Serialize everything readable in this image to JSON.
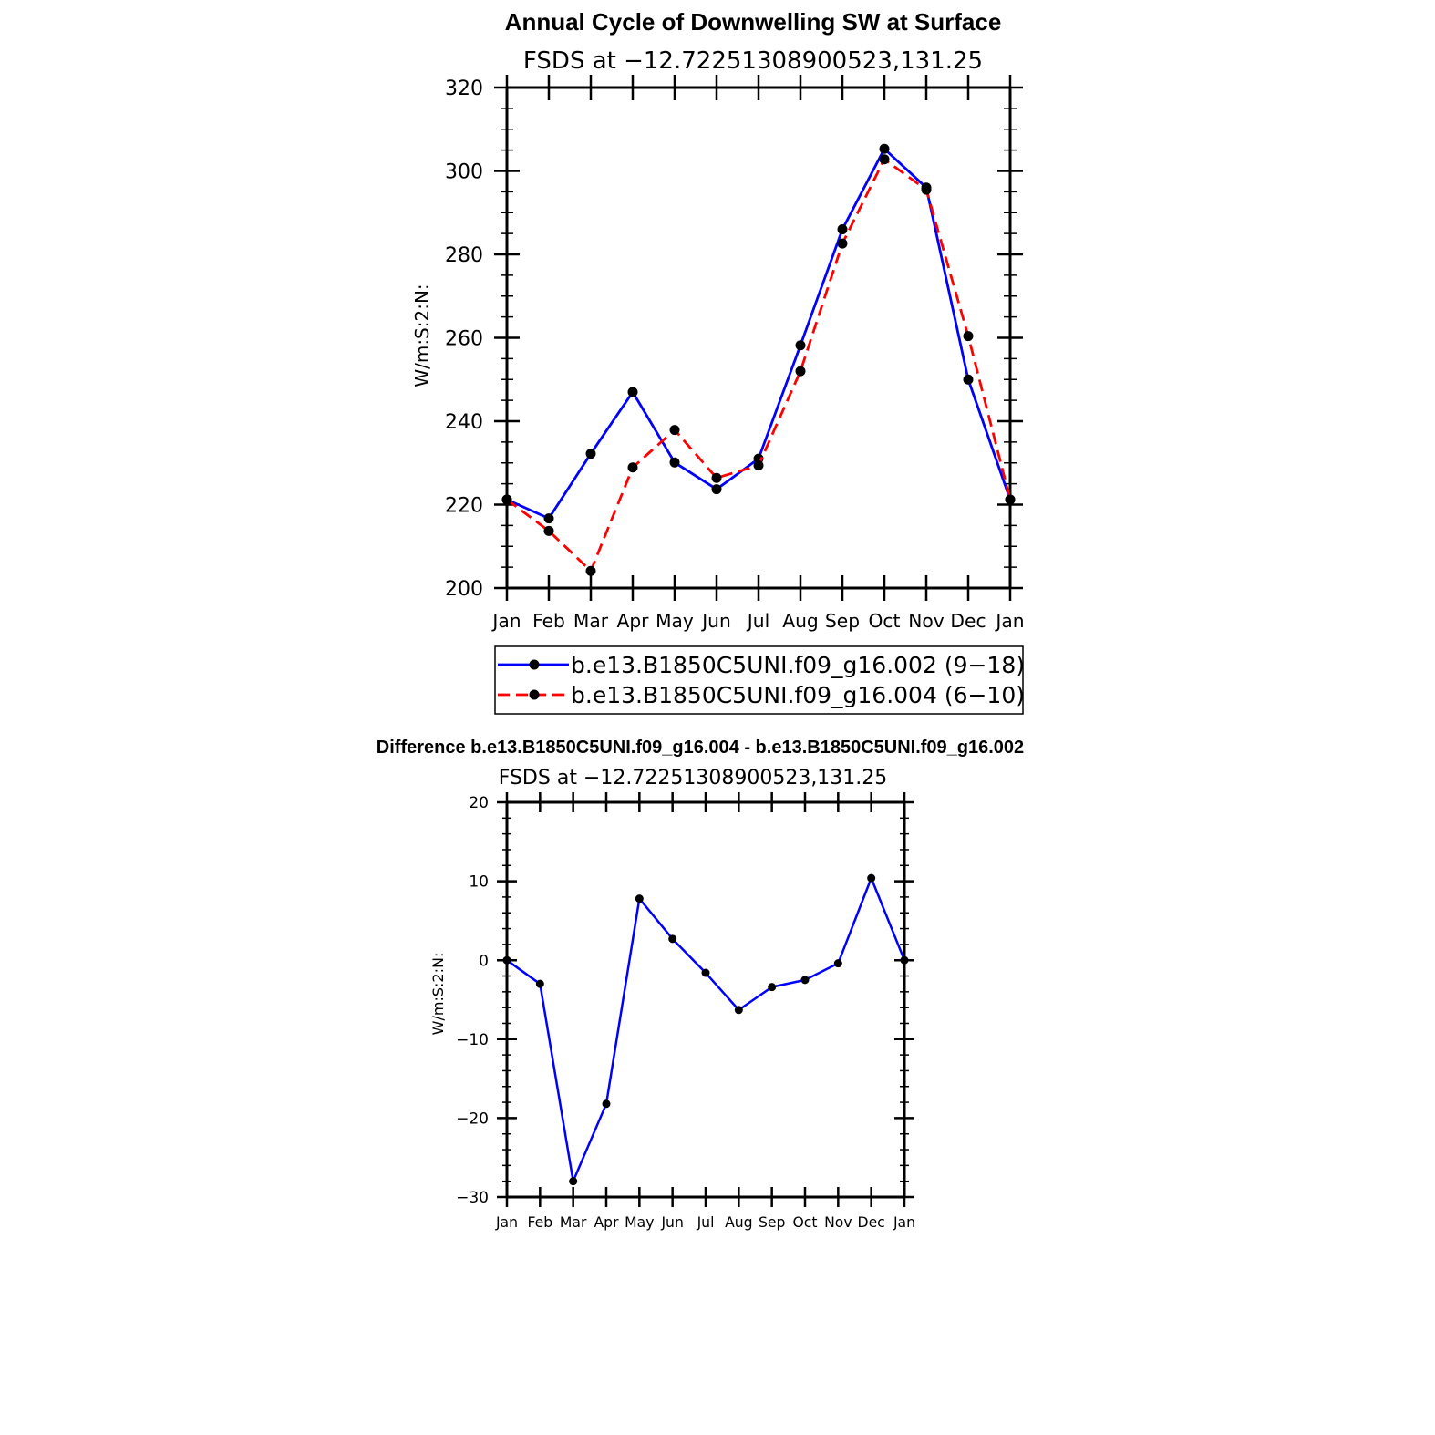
{
  "chart_data": [
    {
      "type": "line",
      "title": "Annual Cycle of Downwelling SW at Surface",
      "subtitle": "FSDS at −12.72251308900523,131.25",
      "ylabel": "W/m:S:2:N:",
      "xlabel": "",
      "categories": [
        "Jan",
        "Feb",
        "Mar",
        "Apr",
        "May",
        "Jun",
        "Jul",
        "Aug",
        "Sep",
        "Oct",
        "Nov",
        "Dec",
        "Jan"
      ],
      "ylim": [
        200,
        320
      ],
      "yticks": [
        "200",
        "220",
        "240",
        "260",
        "280",
        "300",
        "320"
      ],
      "legend_position": "bottom",
      "grid": false,
      "series": [
        {
          "name": "b.e13.B1850C5UNI.f09_g16.002 (9−18)",
          "color": "#0000ff",
          "dash": "solid",
          "values": [
            221.2,
            216.7,
            232.2,
            247.0,
            230.1,
            223.7,
            231.0,
            258.2,
            286.0,
            305.3,
            296.0,
            250.0,
            221.2
          ]
        },
        {
          "name": "b.e13.B1850C5UNI.f09_g16.004 (6−10)",
          "color": "#ff0000",
          "dash": "dashed",
          "values": [
            221.2,
            213.7,
            204.1,
            228.9,
            237.9,
            226.4,
            229.4,
            252.0,
            282.6,
            302.8,
            295.5,
            260.4,
            221.2
          ]
        }
      ]
    },
    {
      "type": "line",
      "title": "Difference b.e13.B1850C5UNI.f09_g16.004 - b.e13.B1850C5UNI.f09_g16.002",
      "subtitle": "FSDS at −12.72251308900523,131.25",
      "ylabel": "W/m:S:2:N:",
      "xlabel": "",
      "categories": [
        "Jan",
        "Feb",
        "Mar",
        "Apr",
        "May",
        "Jun",
        "Jul",
        "Aug",
        "Sep",
        "Oct",
        "Nov",
        "Dec",
        "Jan"
      ],
      "ylim": [
        -30,
        20
      ],
      "yticks": [
        "−30",
        "−20",
        "−10",
        "0",
        "10",
        "20"
      ],
      "grid": false,
      "series": [
        {
          "color": "#0000ff",
          "dash": "solid",
          "values": [
            0.0,
            -3.0,
            -28.0,
            -18.2,
            7.8,
            2.7,
            -1.6,
            -6.3,
            -3.4,
            -2.5,
            -0.4,
            10.4,
            0.0
          ]
        }
      ]
    }
  ]
}
